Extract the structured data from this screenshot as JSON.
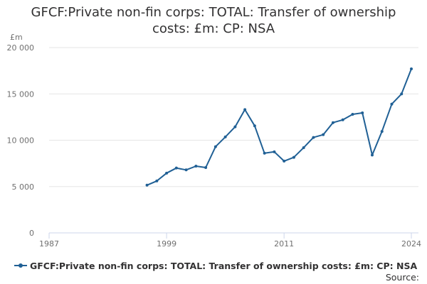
{
  "colors": {
    "series": "#206095",
    "grid": "#e6e6e6",
    "axis": "#ccd6eb",
    "tick_text": "#707070",
    "text": "#323132"
  },
  "source_label": "Source:",
  "chart_data": {
    "type": "line",
    "title": "GFCF:Private non-fin corps: TOTAL: Transfer of ownership costs: £m: CP: NSA",
    "ylabel": "£m",
    "xlabel": "",
    "xlim": [
      1987,
      2024
    ],
    "ylim": [
      0,
      20000
    ],
    "x_ticks": [
      1987,
      1999,
      2011,
      2024
    ],
    "x_tick_labels": [
      "1987",
      "1999",
      "2011",
      "2024"
    ],
    "y_ticks": [
      0,
      5000,
      10000,
      15000,
      20000
    ],
    "y_tick_labels": [
      "0",
      "5 000",
      "10 000",
      "15 000",
      "20 000"
    ],
    "grid": "horizontal",
    "legend_position": "bottom-left",
    "series": [
      {
        "name": "GFCF:Private non-fin corps: TOTAL: Transfer of ownership costs: £m: CP: NSA",
        "x": [
          1997,
          1998,
          1999,
          2000,
          2001,
          2002,
          2003,
          2004,
          2005,
          2006,
          2007,
          2008,
          2009,
          2010,
          2011,
          2012,
          2013,
          2014,
          2015,
          2016,
          2017,
          2018,
          2019,
          2020,
          2021,
          2022,
          2023,
          2024
        ],
        "values": [
          5150,
          5600,
          6450,
          7000,
          6800,
          7200,
          7050,
          9300,
          10350,
          11450,
          13300,
          11550,
          8600,
          8750,
          7750,
          8150,
          9200,
          10300,
          10600,
          11900,
          12200,
          12800,
          12950,
          8400,
          10950,
          13900,
          15000,
          17700
        ]
      }
    ]
  }
}
